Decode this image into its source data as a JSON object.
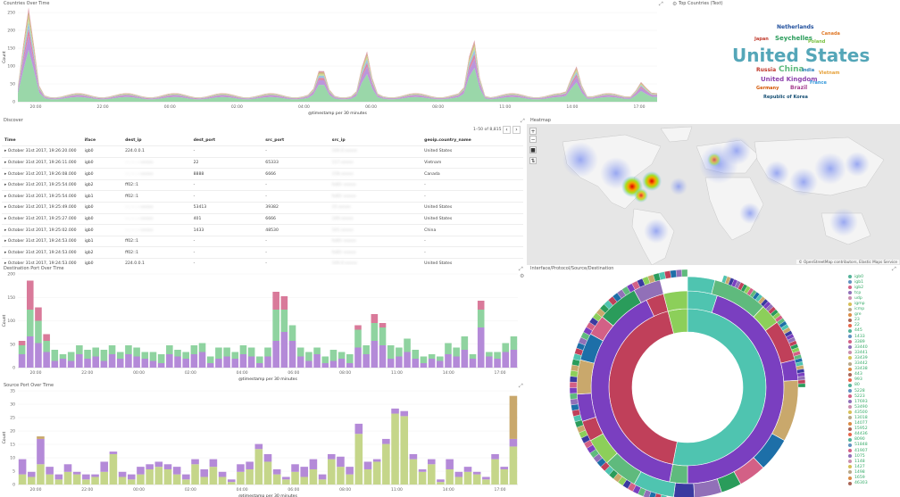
{
  "countries_over_time": {
    "title": "Countries Over Time",
    "ylabel": "Count",
    "xlabel": "@timestamp per 30 minutes",
    "y_ticks": [
      "250",
      "200",
      "150",
      "100",
      "50",
      "0"
    ],
    "x_ticks": [
      "20:00",
      "22:00",
      "00:00",
      "02:00",
      "04:00",
      "06:00",
      "08:00",
      "11:00",
      "14:00",
      "17:00"
    ]
  },
  "top_countries": {
    "title": "Top Countries (Text)",
    "words": [
      {
        "text": "Netherlands",
        "color": "#1f4e9c",
        "size": 6
      },
      {
        "text": "Canada",
        "color": "#e07a2a",
        "size": 5
      },
      {
        "text": "Japan",
        "color": "#c0392b",
        "size": 5
      },
      {
        "text": "Seychelles",
        "color": "#2a9c5b",
        "size": 7
      },
      {
        "text": "Poland",
        "color": "#7ac142",
        "size": 5
      },
      {
        "text": "United States",
        "color": "#54a6b8",
        "size": 20
      },
      {
        "text": "Russia",
        "color": "#c0392b",
        "size": 6
      },
      {
        "text": "China",
        "color": "#5fba7d",
        "size": 9
      },
      {
        "text": "India",
        "color": "#2980b9",
        "size": 5
      },
      {
        "text": "Vietnam",
        "color": "#e6a23c",
        "size": 5
      },
      {
        "text": "United Kingdom",
        "color": "#8e44ad",
        "size": 7
      },
      {
        "text": "France",
        "color": "#3498db",
        "size": 5
      },
      {
        "text": "Germany",
        "color": "#d35400",
        "size": 5
      },
      {
        "text": "Brazil",
        "color": "#a53d8f",
        "size": 6
      },
      {
        "text": "Republic of Korea",
        "color": "#1a5276",
        "size": 5
      }
    ]
  },
  "discover": {
    "title": "Discover",
    "pagination": "1–50 of 8,815",
    "columns": [
      "Time",
      "iface",
      "dest_ip",
      "dest_port",
      "src_port",
      "src_ip",
      "geoip.country_name"
    ],
    "rows": [
      [
        "October 31st 2017, 19:26:20.000",
        "igb0",
        "224.0.0.1",
        "-",
        "-",
        "100.0.",
        "United States"
      ],
      [
        "October 31st 2017, 19:26:11.000",
        "igb0",
        "",
        "22",
        "65333",
        "117.",
        "Vietnam"
      ],
      [
        "October 31st 2017, 19:26:08.000",
        "igb0",
        "",
        "8888",
        "6666",
        "158.",
        "Canada"
      ],
      [
        "October 31st 2017, 19:25:54.000",
        "igb2",
        "ff02::1",
        "-",
        "-",
        "fe80::",
        "-"
      ],
      [
        "October 31st 2017, 19:25:54.000",
        "igb1",
        "ff02::1",
        "-",
        "-",
        "fe80::",
        "-"
      ],
      [
        "October 31st 2017, 19:25:49.000",
        "igb0",
        "",
        "53413",
        "39382",
        "15.",
        "United States"
      ],
      [
        "October 31st 2017, 19:25:27.000",
        "igb0",
        "",
        "401",
        "6666",
        "169.",
        "United States"
      ],
      [
        "October 31st 2017, 19:25:02.000",
        "igb0",
        "",
        "1433",
        "48530",
        "101.",
        "China"
      ],
      [
        "October 31st 2017, 19:24:53.000",
        "igb1",
        "ff02::1",
        "-",
        "-",
        "fe80::",
        "-"
      ],
      [
        "October 31st 2017, 19:24:53.000",
        "igb2",
        "ff02::1",
        "-",
        "-",
        "fe80::",
        "-"
      ],
      [
        "October 31st 2017, 19:24:53.000",
        "igb0",
        "224.0.0.1",
        "-",
        "-",
        "100.0.",
        "United States"
      ]
    ]
  },
  "heatmap": {
    "title": "Heatmap",
    "attribution": "© OpenStreetMap contributors, Elastic Maps Service"
  },
  "dest_port": {
    "title": "Destination Port Over Time",
    "ylabel": "Count",
    "xlabel": "@timestamp per 30 minutes",
    "y_ticks": [
      "200",
      "150",
      "100",
      "50",
      "0"
    ],
    "x_ticks": [
      "20:00",
      "22:00",
      "00:00",
      "02:00",
      "04:00",
      "06:00",
      "08:00",
      "11:00",
      "14:00",
      "17:00"
    ]
  },
  "src_port": {
    "title": "Source Port Over Time",
    "ylabel": "Count",
    "xlabel": "@timestamp per 30 minutes",
    "y_ticks": [
      "35",
      "30",
      "25",
      "20",
      "15",
      "10",
      "5",
      "0"
    ],
    "x_ticks": [
      "20:00",
      "22:00",
      "00:00",
      "02:00",
      "04:00",
      "06:00",
      "08:00",
      "11:00",
      "14:00",
      "17:00"
    ]
  },
  "sunburst": {
    "title": "Interface/Protocol/Source/Destination",
    "legend": [
      {
        "label": "igb0",
        "color": "#54b399"
      },
      {
        "label": "igb1",
        "color": "#6092c0"
      },
      {
        "label": "igb2",
        "color": "#d36086"
      },
      {
        "label": "tcp",
        "color": "#9170b8"
      },
      {
        "label": "udp",
        "color": "#ca8eae"
      },
      {
        "label": "igmp",
        "color": "#d6bf57"
      },
      {
        "label": "icmp",
        "color": "#b9a888"
      },
      {
        "label": "gre",
        "color": "#da8b45"
      },
      {
        "label": "23",
        "color": "#aa6556"
      },
      {
        "label": "22",
        "color": "#e7664c"
      },
      {
        "label": "445",
        "color": "#54b399"
      },
      {
        "label": "1433",
        "color": "#6092c0"
      },
      {
        "label": "3389",
        "color": "#d36086"
      },
      {
        "label": "33440",
        "color": "#9170b8"
      },
      {
        "label": "33441",
        "color": "#ca8eae"
      },
      {
        "label": "33439",
        "color": "#d6bf57"
      },
      {
        "label": "33442",
        "color": "#b9a888"
      },
      {
        "label": "33438",
        "color": "#da8b45"
      },
      {
        "label": "443",
        "color": "#aa6556"
      },
      {
        "label": "993",
        "color": "#e7664c"
      },
      {
        "label": "80",
        "color": "#54b399"
      },
      {
        "label": "5228",
        "color": "#6092c0"
      },
      {
        "label": "5223",
        "color": "#d36086"
      },
      {
        "label": "17693",
        "color": "#9170b8"
      },
      {
        "label": "53490",
        "color": "#ca8eae"
      },
      {
        "label": "43500",
        "color": "#d6bf57"
      },
      {
        "label": "13018",
        "color": "#b9a888"
      },
      {
        "label": "14077",
        "color": "#da8b45"
      },
      {
        "label": "15952",
        "color": "#aa6556"
      },
      {
        "label": "44436",
        "color": "#e7664c"
      },
      {
        "label": "8090",
        "color": "#54b399"
      },
      {
        "label": "51848",
        "color": "#6092c0"
      },
      {
        "label": "41907",
        "color": "#d36086"
      },
      {
        "label": "1075",
        "color": "#9170b8"
      },
      {
        "label": "1148",
        "color": "#ca8eae"
      },
      {
        "label": "1427",
        "color": "#d6bf57"
      },
      {
        "label": "1498",
        "color": "#b9a888"
      },
      {
        "label": "1659",
        "color": "#da8b45"
      },
      {
        "label": "46303",
        "color": "#aa6556"
      }
    ]
  },
  "colors": {
    "green": "#8fd3a0",
    "purple": "#b48ad8",
    "pink": "#d97a9a",
    "teal": "#7ecfc0",
    "olive": "#c5d68a",
    "tan": "#c9a86c"
  }
}
